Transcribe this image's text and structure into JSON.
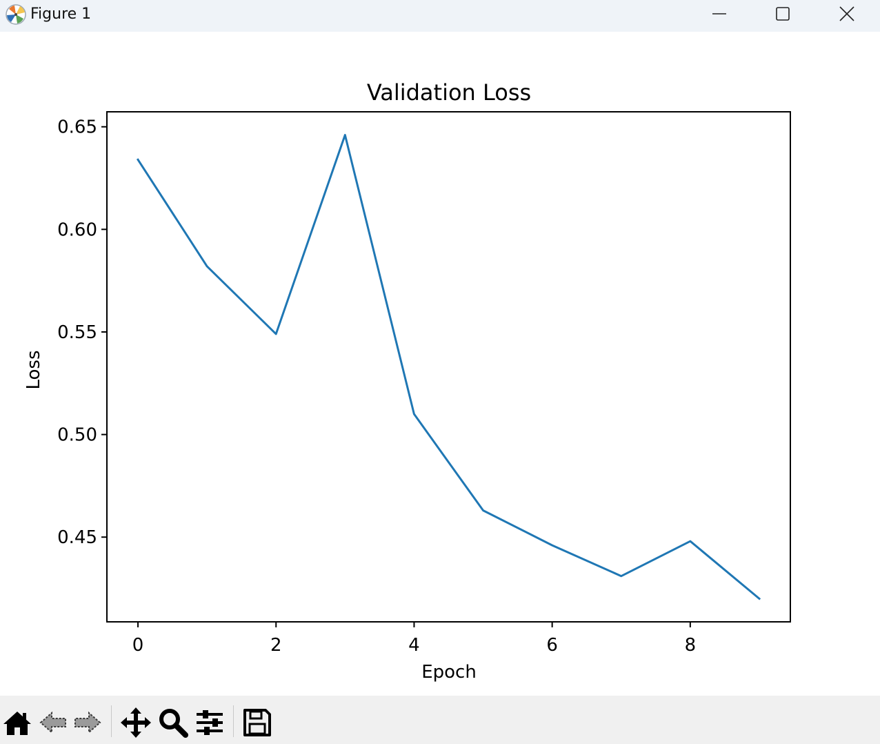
{
  "window": {
    "title": "Figure 1",
    "icons": {
      "app": "matplotlib-logo-icon",
      "minimize": "minimize-icon",
      "maximize": "maximize-icon",
      "close": "close-icon"
    }
  },
  "toolbar": {
    "buttons": [
      {
        "name": "home",
        "icon": "home-icon"
      },
      {
        "name": "back",
        "icon": "back-arrow-icon",
        "enabled": false
      },
      {
        "name": "forward",
        "icon": "forward-arrow-icon",
        "enabled": false
      },
      {
        "name": "pan",
        "icon": "move-icon"
      },
      {
        "name": "zoom",
        "icon": "magnifier-icon"
      },
      {
        "name": "configure-subplots",
        "icon": "sliders-icon"
      },
      {
        "name": "save",
        "icon": "floppy-disk-icon"
      }
    ]
  },
  "chart_data": {
    "type": "line",
    "title": "Validation Loss",
    "xlabel": "Epoch",
    "ylabel": "Loss",
    "x": [
      0,
      1,
      2,
      3,
      4,
      5,
      6,
      7,
      8,
      9
    ],
    "series": [
      {
        "values": [
          0.634,
          0.582,
          0.549,
          0.646,
          0.51,
          0.463,
          0.446,
          0.431,
          0.448,
          0.42
        ],
        "color": "#1f77b4"
      }
    ],
    "xlim": [
      -0.45,
      9.45
    ],
    "ylim": [
      0.4087,
      0.6573
    ],
    "xticks": [
      0,
      2,
      4,
      6,
      8
    ],
    "xtick_labels": [
      "0",
      "2",
      "4",
      "6",
      "8"
    ],
    "yticks": [
      0.45,
      0.5,
      0.55,
      0.6,
      0.65
    ],
    "ytick_labels": [
      "0.45",
      "0.50",
      "0.55",
      "0.60",
      "0.65"
    ],
    "grid": false,
    "legend": "none"
  }
}
